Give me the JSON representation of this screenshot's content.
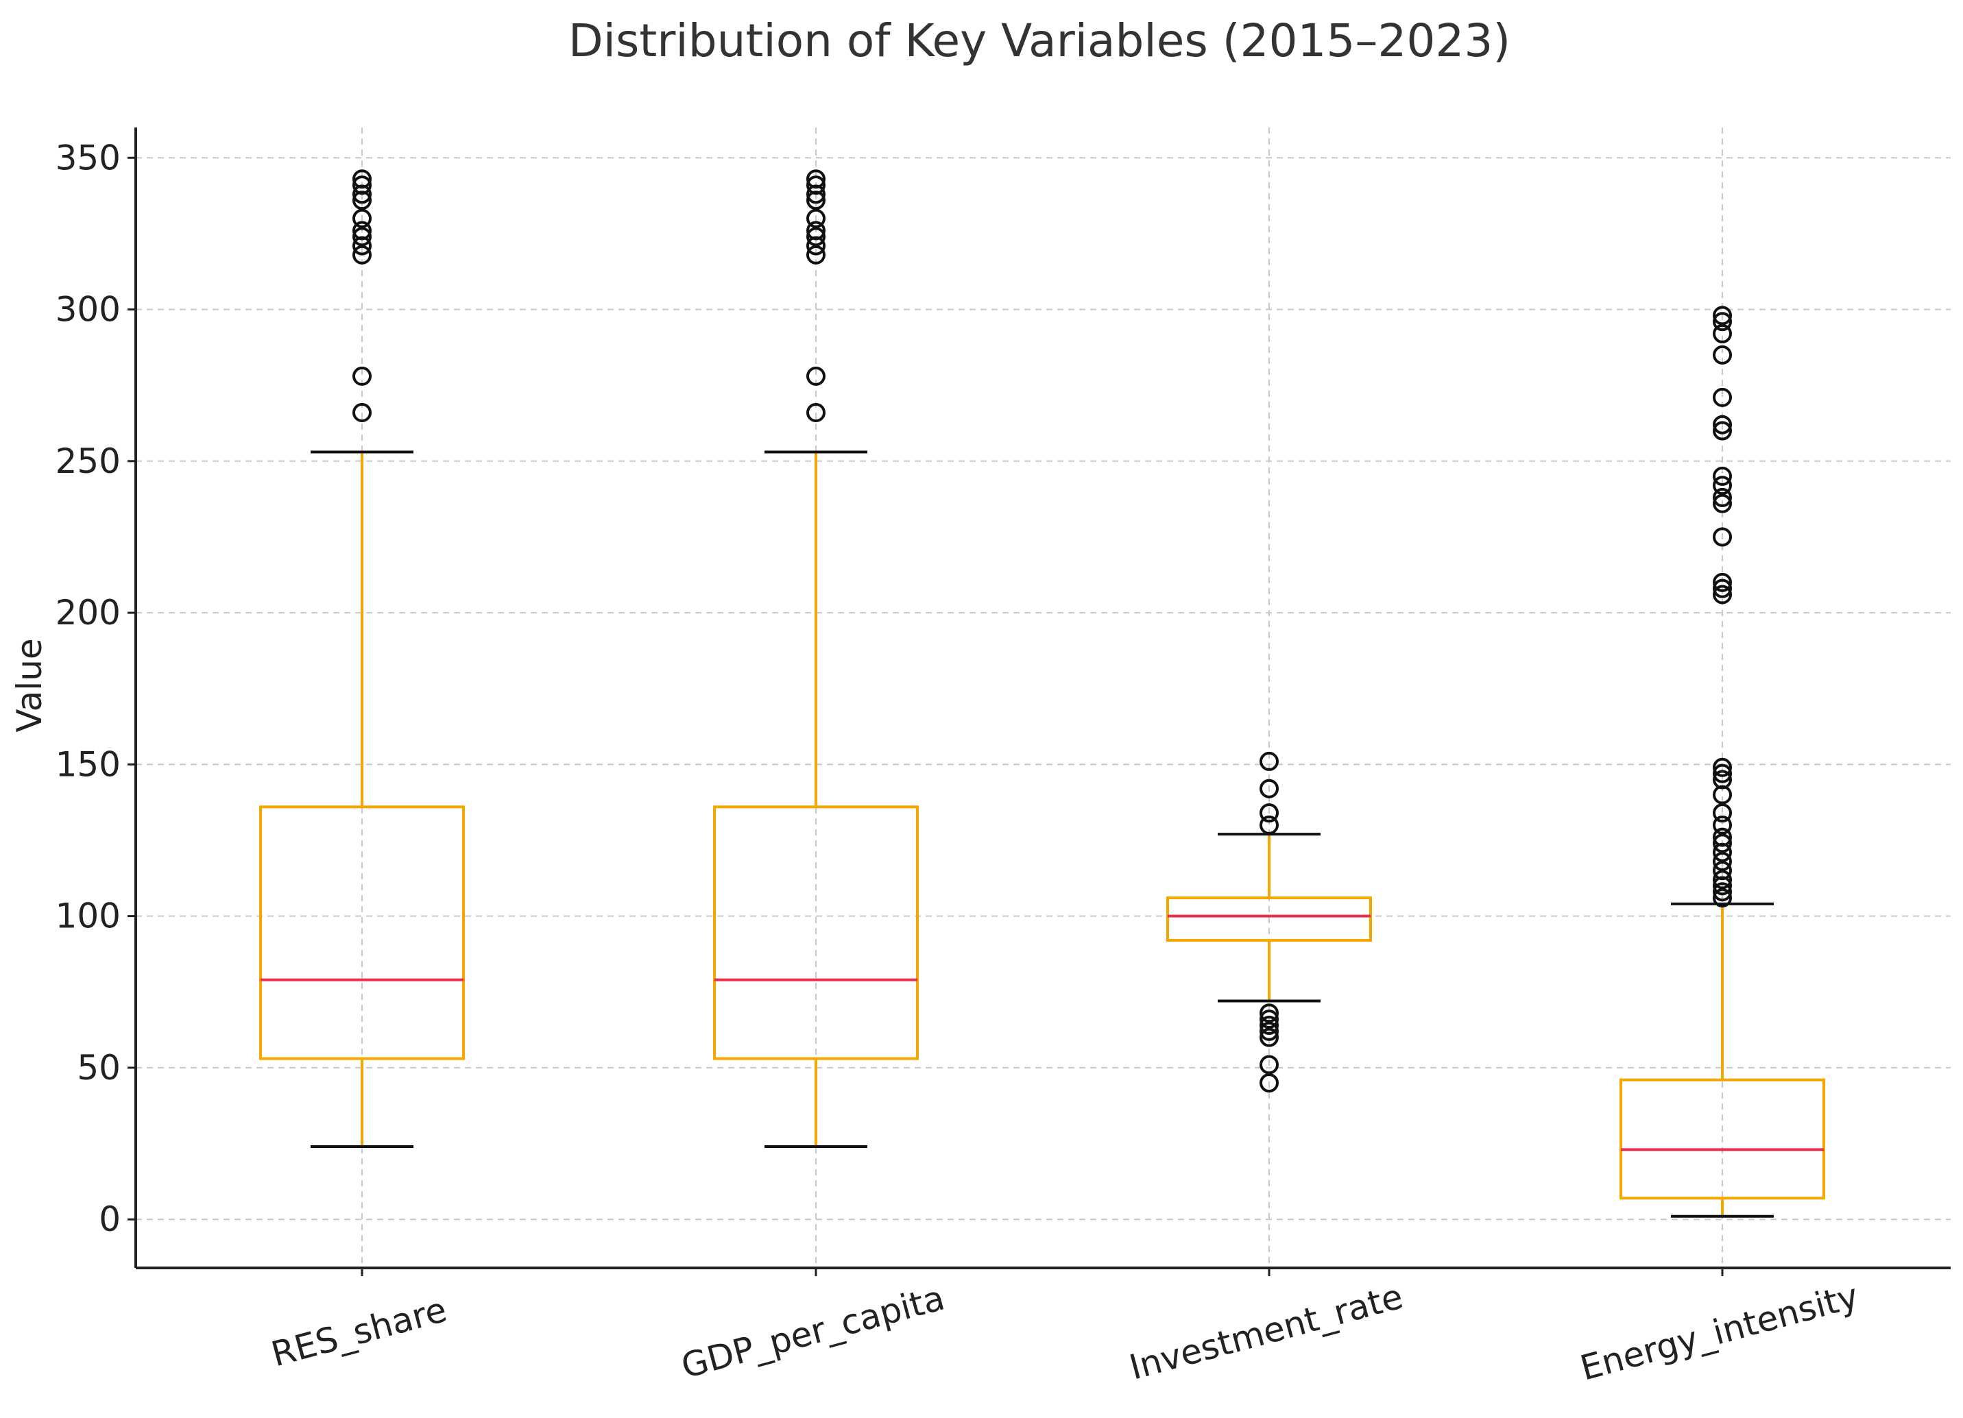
{
  "chart_data": {
    "type": "boxplot",
    "title": "Distribution of Key Variables (2015–2023)",
    "xlabel": "",
    "ylabel": "Value",
    "ylim": [
      -16,
      360
    ],
    "yticks": [
      0,
      50,
      100,
      150,
      200,
      250,
      300,
      350
    ],
    "grid": true,
    "colors": {
      "box": "#f5a700",
      "whisker": "#f5a700",
      "cap": "#111111",
      "median": "#e8304e",
      "flier": "#111111",
      "grid": "#c8c8c8",
      "axis": "#222222"
    },
    "categories": [
      "RES_share",
      "GDP_per_capita",
      "Investment_rate",
      "Energy_intensity"
    ],
    "series": [
      {
        "name": "RES_share",
        "whisker_low": 24,
        "q1": 53,
        "median": 79,
        "q3": 136,
        "whisker_high": 253,
        "outliers": [
          266,
          278,
          318,
          321,
          324,
          326,
          330,
          336,
          338,
          341,
          343
        ]
      },
      {
        "name": "GDP_per_capita",
        "whisker_low": 24,
        "q1": 53,
        "median": 79,
        "q3": 136,
        "whisker_high": 253,
        "outliers": [
          266,
          278,
          318,
          321,
          324,
          326,
          330,
          336,
          338,
          341,
          343
        ]
      },
      {
        "name": "Investment_rate",
        "whisker_low": 72,
        "q1": 92,
        "median": 100,
        "q3": 106,
        "whisker_high": 127,
        "outliers": [
          45,
          51,
          60,
          62,
          64,
          66,
          68,
          130,
          134,
          142,
          151
        ]
      },
      {
        "name": "Energy_intensity",
        "whisker_low": 1,
        "q1": 7,
        "median": 23,
        "q3": 46,
        "whisker_high": 104,
        "outliers": [
          106,
          108,
          110,
          112,
          115,
          118,
          121,
          124,
          126,
          130,
          134,
          140,
          145,
          147,
          149,
          206,
          208,
          210,
          225,
          236,
          238,
          242,
          245,
          260,
          262,
          271,
          285,
          292,
          296,
          298
        ]
      }
    ]
  }
}
